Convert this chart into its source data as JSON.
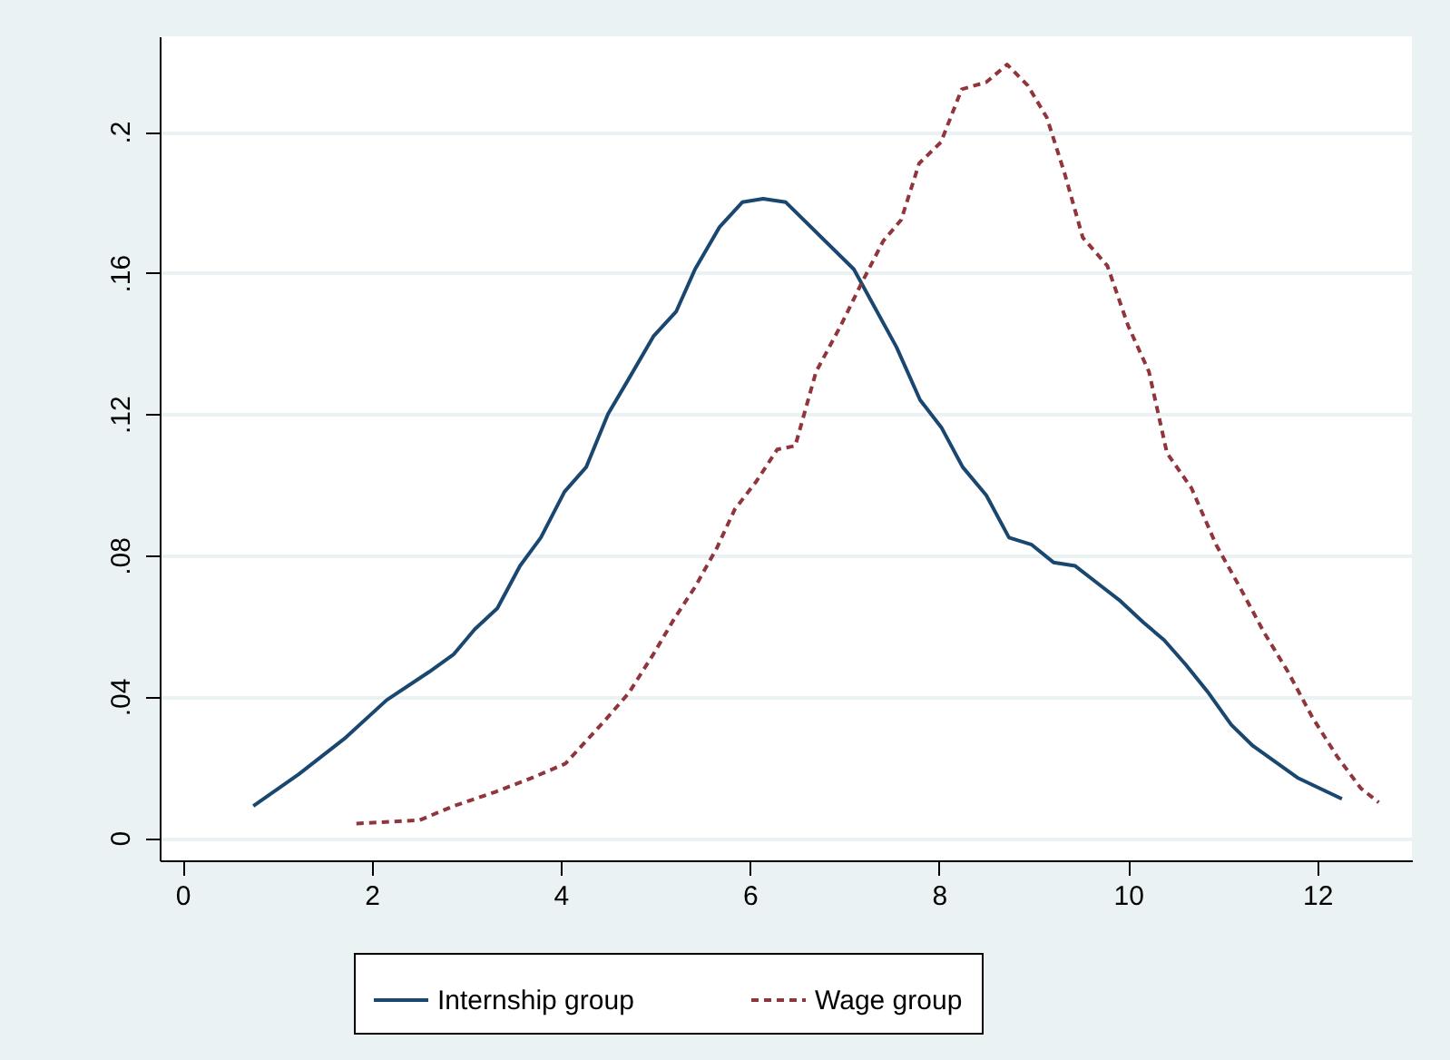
{
  "chart_data": {
    "type": "line",
    "xlim": [
      -0.24,
      13.0
    ],
    "ylim": [
      -0.0064,
      0.227
    ],
    "xticks": [
      0,
      2,
      4,
      6,
      8,
      10,
      12
    ],
    "yticks": [
      {
        "value": 0,
        "label": "0"
      },
      {
        "value": 0.04,
        "label": ".04"
      },
      {
        "value": 0.08,
        "label": ".08"
      },
      {
        "value": 0.12,
        "label": ".12"
      },
      {
        "value": 0.16,
        "label": ".16"
      },
      {
        "value": 0.2,
        "label": ".2"
      }
    ],
    "grid": "y",
    "legend": "bottom",
    "series": [
      {
        "name": "Internship group",
        "color": "#1a476f",
        "line_style": "solid",
        "x": [
          0.75,
          1.23,
          1.71,
          2.16,
          2.61,
          2.87,
          3.09,
          3.33,
          3.57,
          3.79,
          4.04,
          4.27,
          4.5,
          4.72,
          4.98,
          5.22,
          5.42,
          5.68,
          5.92,
          6.14,
          6.38,
          7.1,
          7.55,
          7.8,
          8.03,
          8.25,
          8.5,
          8.74,
          8.98,
          9.21,
          9.44,
          9.68,
          9.92,
          10.16,
          10.38,
          10.61,
          10.85,
          11.09,
          11.32,
          11.79,
          12.26
        ],
        "values": [
          0.009,
          0.018,
          0.028,
          0.039,
          0.047,
          0.052,
          0.059,
          0.065,
          0.077,
          0.085,
          0.098,
          0.105,
          0.12,
          0.13,
          0.142,
          0.149,
          0.161,
          0.173,
          0.18,
          0.181,
          0.18,
          0.161,
          0.139,
          0.124,
          0.116,
          0.105,
          0.097,
          0.085,
          0.083,
          0.078,
          0.077,
          0.072,
          0.067,
          0.061,
          0.056,
          0.049,
          0.041,
          0.032,
          0.026,
          0.017,
          0.011
        ]
      },
      {
        "name": "Wage group",
        "color": "#90353b",
        "line_style": "dashed",
        "x": [
          1.84,
          2.51,
          2.87,
          3.31,
          3.7,
          4.05,
          4.46,
          4.72,
          4.98,
          5.2,
          5.42,
          5.65,
          5.84,
          6.07,
          6.29,
          6.48,
          6.7,
          6.96,
          7.18,
          7.41,
          7.6,
          7.79,
          8.02,
          8.24,
          8.5,
          8.72,
          8.94,
          9.14,
          9.33,
          9.52,
          9.78,
          10.0,
          10.22,
          10.41,
          10.67,
          10.93,
          11.18,
          11.44,
          11.69,
          11.95,
          12.21,
          12.46,
          12.65
        ],
        "values": [
          0.004,
          0.005,
          0.009,
          0.013,
          0.017,
          0.021,
          0.033,
          0.041,
          0.052,
          0.062,
          0.071,
          0.082,
          0.093,
          0.101,
          0.11,
          0.111,
          0.132,
          0.145,
          0.157,
          0.169,
          0.175,
          0.191,
          0.197,
          0.212,
          0.214,
          0.219,
          0.213,
          0.204,
          0.188,
          0.17,
          0.162,
          0.145,
          0.132,
          0.109,
          0.099,
          0.083,
          0.071,
          0.058,
          0.047,
          0.034,
          0.023,
          0.014,
          0.01
        ]
      }
    ]
  }
}
